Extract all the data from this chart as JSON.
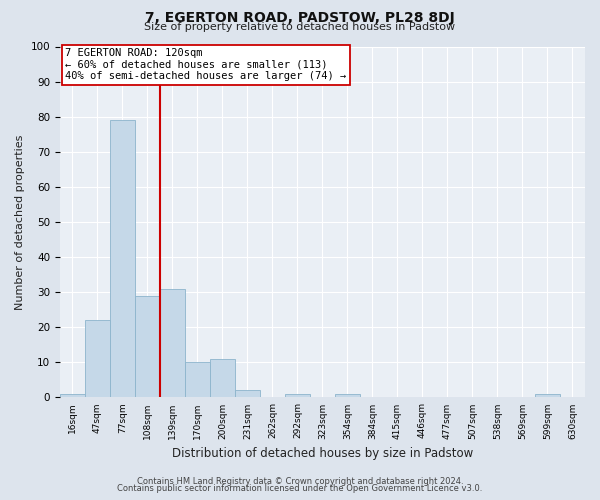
{
  "title": "7, EGERTON ROAD, PADSTOW, PL28 8DJ",
  "subtitle": "Size of property relative to detached houses in Padstow",
  "xlabel": "Distribution of detached houses by size in Padstow",
  "ylabel": "Number of detached properties",
  "bin_labels": [
    "16sqm",
    "47sqm",
    "77sqm",
    "108sqm",
    "139sqm",
    "170sqm",
    "200sqm",
    "231sqm",
    "262sqm",
    "292sqm",
    "323sqm",
    "354sqm",
    "384sqm",
    "415sqm",
    "446sqm",
    "477sqm",
    "507sqm",
    "538sqm",
    "569sqm",
    "599sqm",
    "630sqm"
  ],
  "bar_heights": [
    1,
    22,
    79,
    29,
    31,
    10,
    11,
    2,
    0,
    1,
    0,
    1,
    0,
    0,
    0,
    0,
    0,
    0,
    0,
    1,
    0
  ],
  "bar_color": "#c5d8e8",
  "bar_edge_color": "#8cb4cc",
  "vline_color": "#cc0000",
  "annotation_text": "7 EGERTON ROAD: 120sqm\n← 60% of detached houses are smaller (113)\n40% of semi-detached houses are larger (74) →",
  "annotation_box_facecolor": "#ffffff",
  "annotation_box_edgecolor": "#cc0000",
  "ylim": [
    0,
    100
  ],
  "yticks": [
    0,
    10,
    20,
    30,
    40,
    50,
    60,
    70,
    80,
    90,
    100
  ],
  "bg_color": "#dde4ed",
  "plot_bg_color": "#eaeff5",
  "grid_color": "#ffffff",
  "footer_line1": "Contains HM Land Registry data © Crown copyright and database right 2024.",
  "footer_line2": "Contains public sector information licensed under the Open Government Licence v3.0."
}
